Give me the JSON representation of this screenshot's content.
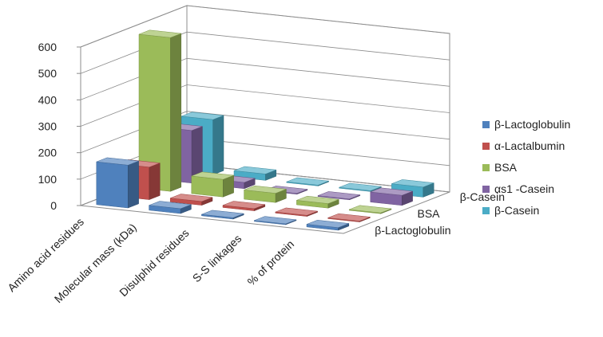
{
  "chart_data": {
    "type": "bar",
    "subtype": "3d-column",
    "categories": [
      "Amino acid residues",
      "Molecular mass (kDa)",
      "Disulphid residues",
      "S-S linkages",
      "% of protein"
    ],
    "series": [
      {
        "name": "β-Lactoglobulin",
        "values": [
          162,
          18.3,
          5,
          2,
          10
        ],
        "color": "#4F81BD"
      },
      {
        "name": "α-Lactalbumin",
        "values": [
          123,
          14.2,
          8,
          4,
          2
        ],
        "color": "#C0504D"
      },
      {
        "name": "BSA",
        "values": [
          582,
          66.3,
          35,
          17,
          1
        ],
        "color": "#9BBB59"
      },
      {
        "name": "αs1 -Casein",
        "values": [
          199,
          23.6,
          0,
          0,
          38
        ],
        "color": "#8064A2"
      },
      {
        "name": "β-Casein",
        "values": [
          209,
          24,
          0,
          0,
          38
        ],
        "color": "#4BACC6"
      }
    ],
    "depth_labels": [
      "β-Lactoglobulin",
      "BSA",
      "β-Casein"
    ],
    "ylim": [
      0,
      600
    ],
    "yticks": [
      0,
      100,
      200,
      300,
      400,
      500,
      600
    ],
    "grid": true,
    "legend_position": "right"
  }
}
